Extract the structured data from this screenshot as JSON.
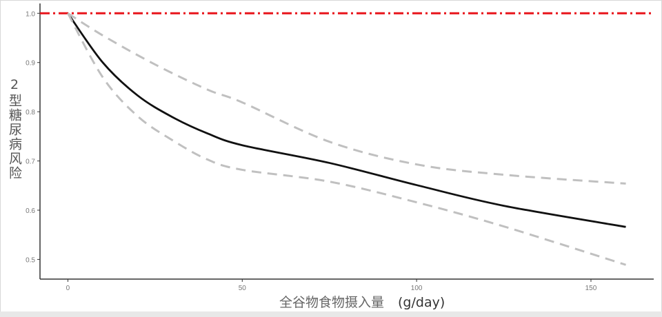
{
  "chart_data": {
    "type": "line",
    "title": "",
    "xlabel": "全谷物食物摄入量",
    "xlabel_unit": "(g/day)",
    "ylabel": "2型糖尿病风险",
    "xlim": [
      -8,
      168
    ],
    "ylim": [
      0.46,
      1.02
    ],
    "xticks": [
      "0",
      "50",
      "100",
      "150"
    ],
    "yticks": [
      "0.5",
      "0.6",
      "0.7",
      "0.8",
      "0.9",
      "1.0"
    ],
    "grid": false,
    "reference_line": {
      "y": 1.0,
      "color": "#e8141b",
      "style": "dash-dot"
    },
    "series": [
      {
        "role": "estimate",
        "color": "#111111",
        "style": "solid",
        "x": [
          0,
          10,
          20,
          30,
          40,
          50,
          75,
          100,
          125,
          160
        ],
        "y": [
          1.0,
          0.9,
          0.833,
          0.789,
          0.756,
          0.732,
          0.696,
          0.651,
          0.609,
          0.566
        ]
      },
      {
        "role": "upper-ci",
        "color": "#c0c0c0",
        "style": "dashed",
        "x": [
          0,
          10,
          25,
          40,
          50,
          75,
          100,
          125,
          160
        ],
        "y": [
          1.0,
          0.955,
          0.896,
          0.845,
          0.819,
          0.739,
          0.693,
          0.672,
          0.654
        ]
      },
      {
        "role": "lower-ci",
        "color": "#c0c0c0",
        "style": "dashed",
        "x": [
          0,
          10,
          20,
          30,
          40,
          50,
          75,
          100,
          125,
          160
        ],
        "y": [
          1.0,
          0.87,
          0.791,
          0.742,
          0.703,
          0.682,
          0.658,
          0.616,
          0.567,
          0.489
        ]
      }
    ]
  }
}
